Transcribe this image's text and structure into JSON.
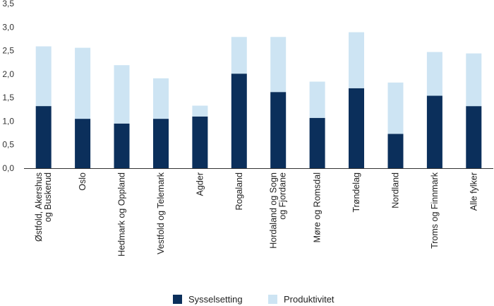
{
  "chart_data": {
    "type": "bar",
    "stacked": true,
    "categories": [
      [
        "Østfold, Akershus",
        "og Buskerud"
      ],
      [
        "Oslo"
      ],
      [
        "Hedmark og Oppland"
      ],
      [
        "Vestfold og Telemark"
      ],
      [
        "Agder"
      ],
      [
        "Rogaland"
      ],
      [
        "Hordaland og Sogn",
        "og Fjordane"
      ],
      [
        "Møre og Romsdal"
      ],
      [
        "Trøndelag"
      ],
      [
        "Nordland"
      ],
      [
        "Troms og Finnmark"
      ],
      [
        "Alle fylker"
      ]
    ],
    "series": [
      {
        "name": "Sysselsetting",
        "color": "#0b2f5b",
        "values": [
          1.32,
          1.05,
          0.95,
          1.05,
          1.1,
          2.01,
          1.62,
          1.07,
          1.7,
          0.73,
          1.54,
          1.32
        ]
      },
      {
        "name": "Produktivitet",
        "color": "#cde4f3",
        "values": [
          1.27,
          1.51,
          1.24,
          0.86,
          0.23,
          0.78,
          1.17,
          0.77,
          1.19,
          1.09,
          0.93,
          1.12
        ]
      }
    ],
    "yticks": [
      "0,0",
      "0,5",
      "1,0",
      "1,5",
      "2,0",
      "2,5",
      "3,0",
      "3,5"
    ],
    "ylim": [
      0,
      3.5
    ],
    "grid": false,
    "legend": "bottom"
  }
}
